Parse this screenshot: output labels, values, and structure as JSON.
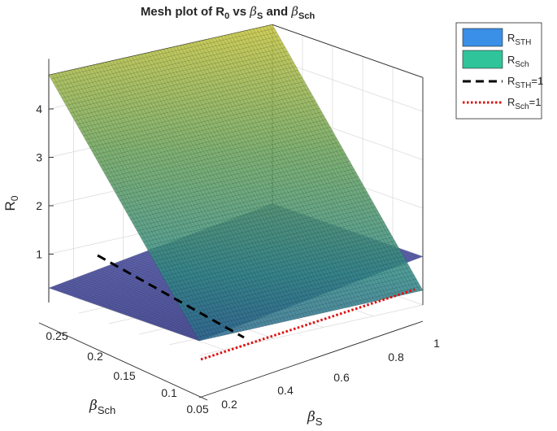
{
  "chart_data": {
    "type": "surface",
    "title": {
      "prefix": "Mesh plot of R",
      "sub0": "0",
      "mid": " vs ",
      "beta1": "β",
      "sub1": "S",
      "and": " and ",
      "beta2": "β",
      "sub2": "Sch"
    },
    "xlabel": {
      "main": "β",
      "sub": "S"
    },
    "ylabel": {
      "main": "β",
      "sub": "Sch"
    },
    "zlabel": {
      "main": "R",
      "sub": "0"
    },
    "x_range": [
      0.1,
      1.0
    ],
    "y_range": [
      0.05,
      0.3
    ],
    "z_range": [
      0,
      4.7
    ],
    "x_ticks": [
      "0.2",
      "0.4",
      "0.6",
      "0.8",
      "1"
    ],
    "x_tick_values": [
      0.2,
      0.4,
      0.6,
      0.8,
      1.0
    ],
    "y_ticks": [
      "0.05",
      "0.1",
      "0.15",
      "0.2",
      "0.25"
    ],
    "y_tick_values": [
      0.05,
      0.1,
      0.15,
      0.2,
      0.25
    ],
    "z_ticks": [
      "1",
      "2",
      "3",
      "4"
    ],
    "z_tick_values": [
      1,
      2,
      3,
      4
    ],
    "grid": true,
    "legend_position": "top-right",
    "surfaces": [
      {
        "name": "R",
        "sub": "STH",
        "legend_color": "#3a8fe6",
        "corners": {
          "x0y0": 0.3,
          "x1y0": 1.0,
          "x0y1": 0.3,
          "x1y1": 1.0
        }
      },
      {
        "name": "R",
        "sub": "Sch",
        "legend_color": "#2fc49a",
        "corners": {
          "x0y0": 0.3,
          "x1y0": 0.3,
          "x0y1": 4.7,
          "x1y1": 4.7
        }
      }
    ],
    "threshold_lines": [
      {
        "name": "R",
        "sub": "STH",
        "suffix": "=1",
        "style": "dashed",
        "color": "#000000"
      },
      {
        "name": "R",
        "sub": "Sch",
        "suffix": "=1",
        "style": "dotted",
        "color": "#e01010"
      }
    ]
  }
}
